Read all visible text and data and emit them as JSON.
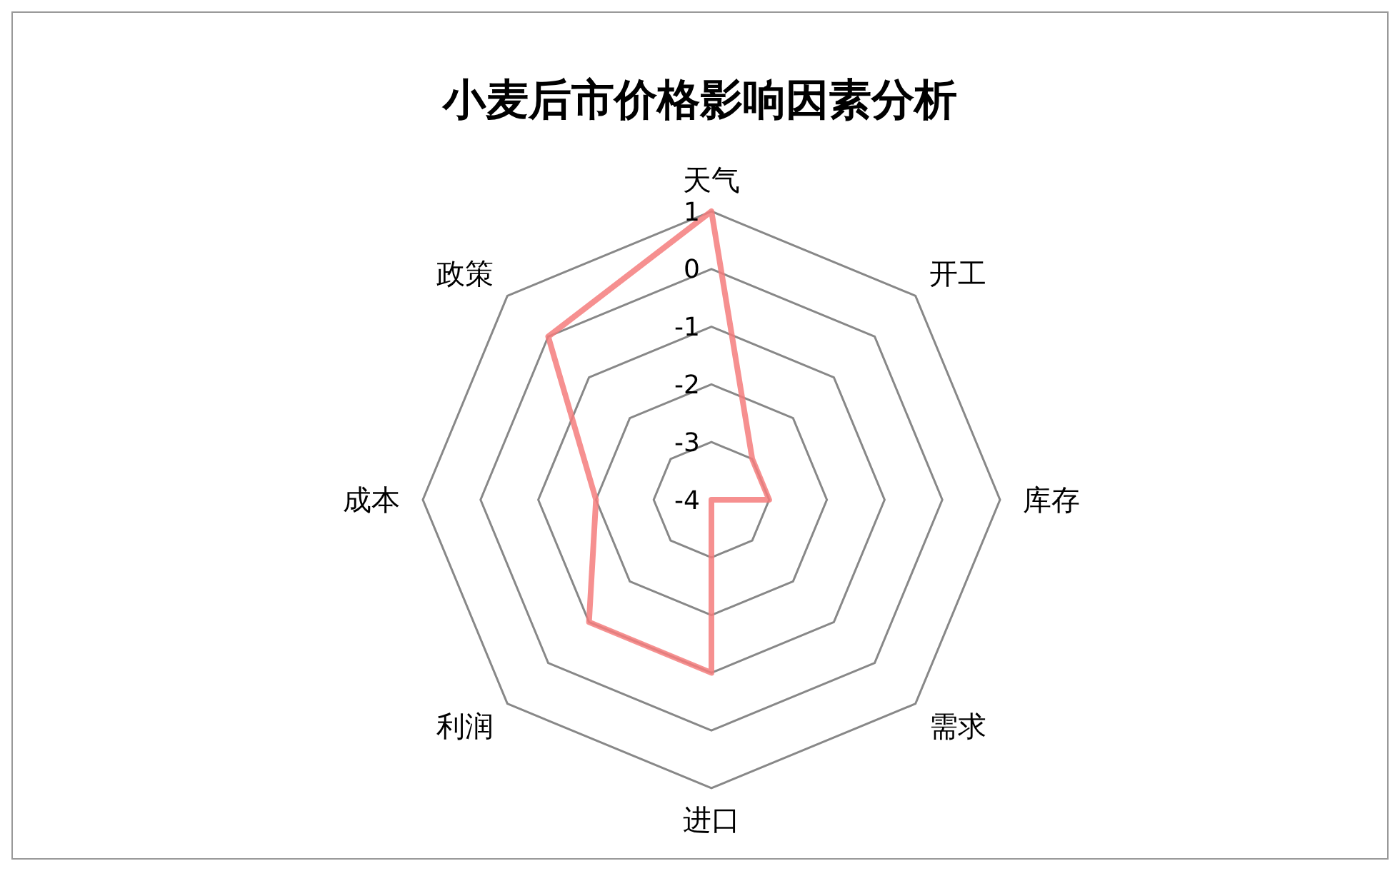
{
  "chart_data": {
    "type": "radar",
    "title": "小麦后市价格影响因素分析",
    "categories": [
      "天气",
      "开工",
      "库存",
      "需求",
      "进口",
      "利润",
      "成本",
      "政策"
    ],
    "series": [
      {
        "color": "#f47c7c",
        "values": [
          1,
          -3,
          -3,
          -4,
          -1,
          -1,
          -2,
          0
        ]
      }
    ],
    "ylim": [
      -4,
      1
    ],
    "yticks": [
      -4,
      -3,
      -2,
      -1,
      0,
      1
    ],
    "grid": true,
    "marker": "none",
    "line_style": "solid"
  }
}
